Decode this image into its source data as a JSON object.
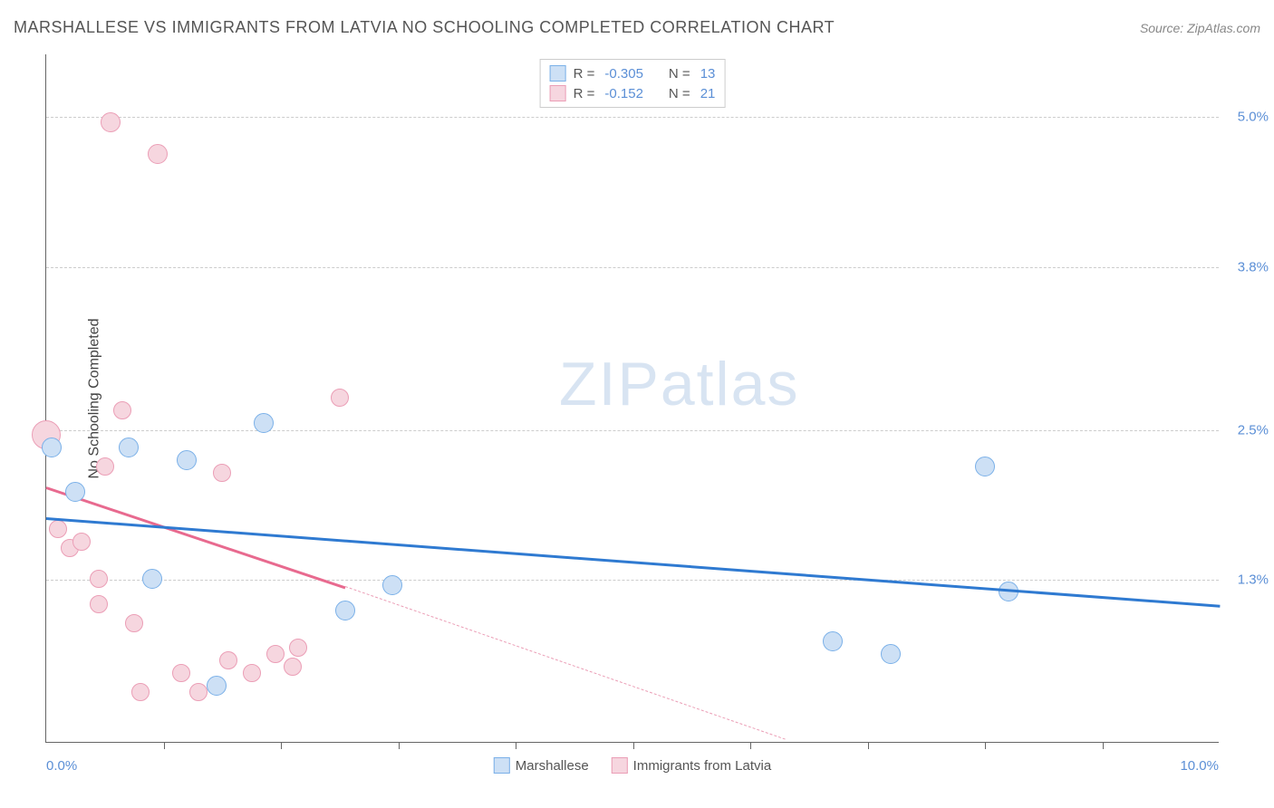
{
  "title": "MARSHALLESE VS IMMIGRANTS FROM LATVIA NO SCHOOLING COMPLETED CORRELATION CHART",
  "source": "Source: ZipAtlas.com",
  "y_axis_title": "No Schooling Completed",
  "watermark": {
    "zip": "ZIP",
    "atlas": "atlas"
  },
  "chart": {
    "type": "scatter",
    "xlim": [
      0,
      10
    ],
    "ylim": [
      0,
      5.5
    ],
    "x_ticks": [
      1,
      2,
      3,
      4,
      5,
      6,
      7,
      8,
      9
    ],
    "x_labels": {
      "min": "0.0%",
      "max": "10.0%"
    },
    "y_grid": [
      {
        "val": 1.3,
        "label": "1.3%"
      },
      {
        "val": 2.5,
        "label": "2.5%"
      },
      {
        "val": 3.8,
        "label": "3.8%"
      },
      {
        "val": 5.0,
        "label": "5.0%"
      }
    ],
    "background_color": "#ffffff",
    "grid_color": "#cccccc",
    "axis_color": "#666666",
    "label_color": "#5b8fd6"
  },
  "series": [
    {
      "name": "Marshallese",
      "color_fill": "#cde0f5",
      "color_stroke": "#7ab0e8",
      "trend_color": "#2f7ad1",
      "r": "-0.305",
      "n": "13",
      "trend": {
        "x1": 0,
        "y1": 1.8,
        "x2": 10,
        "y2": 1.1
      },
      "points": [
        {
          "x": 0.05,
          "y": 2.35,
          "s": 11
        },
        {
          "x": 0.25,
          "y": 2.0,
          "s": 11
        },
        {
          "x": 0.7,
          "y": 2.35,
          "s": 11
        },
        {
          "x": 0.9,
          "y": 1.3,
          "s": 11
        },
        {
          "x": 1.2,
          "y": 2.25,
          "s": 11
        },
        {
          "x": 1.45,
          "y": 0.45,
          "s": 11
        },
        {
          "x": 1.85,
          "y": 2.55,
          "s": 11
        },
        {
          "x": 2.55,
          "y": 1.05,
          "s": 11
        },
        {
          "x": 2.95,
          "y": 1.25,
          "s": 11
        },
        {
          "x": 6.7,
          "y": 0.8,
          "s": 11
        },
        {
          "x": 7.2,
          "y": 0.7,
          "s": 11
        },
        {
          "x": 8.2,
          "y": 1.2,
          "s": 11
        },
        {
          "x": 8.0,
          "y": 2.2,
          "s": 11
        }
      ]
    },
    {
      "name": "Immigrants from Latvia",
      "color_fill": "#f6d6df",
      "color_stroke": "#eb9eb6",
      "trend_color": "#e86a8f",
      "r": "-0.152",
      "n": "21",
      "trend": {
        "x1": 0,
        "y1": 2.05,
        "x2": 2.55,
        "y2": 1.25
      },
      "trend_dash": {
        "x1": 2.55,
        "y1": 1.25,
        "x2": 6.3,
        "y2": 0.03
      },
      "points": [
        {
          "x": 0.0,
          "y": 2.45,
          "s": 16
        },
        {
          "x": 0.1,
          "y": 1.7,
          "s": 10
        },
        {
          "x": 0.2,
          "y": 1.55,
          "s": 10
        },
        {
          "x": 0.3,
          "y": 1.6,
          "s": 10
        },
        {
          "x": 0.55,
          "y": 4.95,
          "s": 11
        },
        {
          "x": 0.5,
          "y": 2.2,
          "s": 10
        },
        {
          "x": 0.45,
          "y": 1.3,
          "s": 10
        },
        {
          "x": 0.45,
          "y": 1.1,
          "s": 10
        },
        {
          "x": 0.65,
          "y": 2.65,
          "s": 10
        },
        {
          "x": 0.75,
          "y": 0.95,
          "s": 10
        },
        {
          "x": 0.8,
          "y": 0.4,
          "s": 10
        },
        {
          "x": 0.95,
          "y": 4.7,
          "s": 11
        },
        {
          "x": 1.15,
          "y": 0.55,
          "s": 10
        },
        {
          "x": 1.3,
          "y": 0.4,
          "s": 10
        },
        {
          "x": 1.55,
          "y": 0.65,
          "s": 10
        },
        {
          "x": 1.5,
          "y": 2.15,
          "s": 10
        },
        {
          "x": 1.75,
          "y": 0.55,
          "s": 10
        },
        {
          "x": 1.95,
          "y": 0.7,
          "s": 10
        },
        {
          "x": 2.15,
          "y": 0.75,
          "s": 10
        },
        {
          "x": 2.1,
          "y": 0.6,
          "s": 10
        },
        {
          "x": 2.5,
          "y": 2.75,
          "s": 10
        }
      ]
    }
  ],
  "legend_stats": {
    "r_label": "R =",
    "n_label": "N ="
  }
}
